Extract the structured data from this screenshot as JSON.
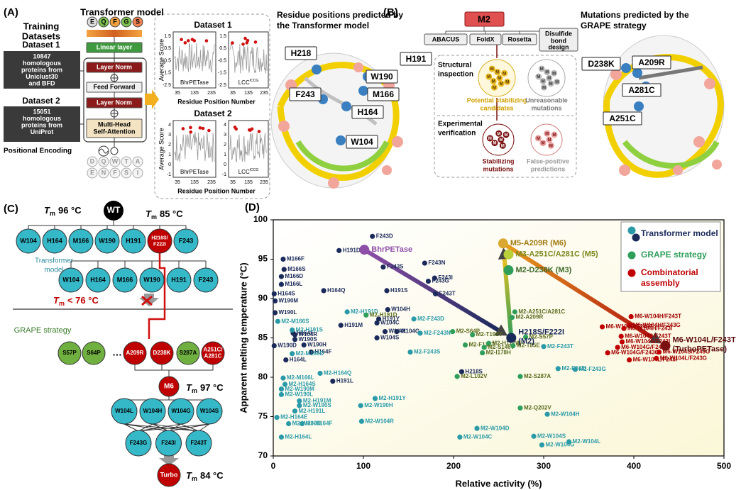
{
  "panels": {
    "A": {
      "letter": "(A)",
      "title": "Transformer model",
      "training": [
        "Training",
        "Datasets"
      ],
      "datasets": [
        {
          "name": "Dataset 1",
          "desc": [
            "10847",
            "homologous",
            "proteins from",
            "Uniclust30",
            "and BFD"
          ]
        },
        {
          "name": "Dataset 2",
          "desc": [
            "15051",
            "homologous",
            "proteins from",
            "UniProt"
          ]
        }
      ],
      "output_tokens": [
        "E",
        "Q",
        "F",
        "G",
        "S"
      ],
      "layers": [
        [
          "Linear layer"
        ],
        [
          "Layer Norm"
        ],
        [
          "Feed Forward"
        ],
        [
          "Layer Norm"
        ],
        [
          "Multi-Head",
          "Self-Attention"
        ]
      ],
      "positional_encoding": "Positional Encoding",
      "input_tokens": [
        [
          "D",
          "Q",
          "W",
          "T",
          "A"
        ],
        [
          "E",
          "N",
          "F",
          "S",
          "I"
        ]
      ],
      "score_plots": {
        "ylabel": "Average Score",
        "xlabel": "Residue Position Number",
        "proteins": [
          "BhrPETase",
          "LCC"
        ],
        "sup": "ICCG",
        "xticks": [
          "35",
          "135",
          "235"
        ],
        "datasets": [
          {
            "title": "Dataset 1",
            "yticks": [
              "1.5",
              "0.5",
              "-0.5",
              "-1.5",
              "-2.5"
            ]
          },
          {
            "title": "Dataset 2",
            "yticks": [
              "4",
              "3",
              "2",
              "1",
              "0",
              "-1"
            ]
          }
        ]
      },
      "structure_title": [
        "Residue positions predicted by",
        "the Transformer model"
      ],
      "residues": [
        "H218",
        "H191",
        "W190",
        "M166",
        "F243",
        "H164",
        "W104"
      ]
    },
    "B": {
      "letter": "(B)",
      "root": "M2",
      "tools": [
        "ABACUS",
        "FoldX",
        "Rosetta"
      ],
      "disulfide": [
        "Disulfide",
        "bond",
        "design"
      ],
      "token": "M",
      "step1": [
        "Structural",
        "inspection"
      ],
      "step1_pass": [
        "Potential stabilizing",
        "candidates"
      ],
      "step1_fail": [
        "Unreasonable",
        "mutations"
      ],
      "step2": [
        "Experimental",
        "verification"
      ],
      "step2_pass": [
        "Stabilizing",
        "mutations"
      ],
      "step2_fail": [
        "False-positive",
        "predictions"
      ],
      "structure_title": [
        "Mutations predicted by the",
        "GRAPE strategy"
      ],
      "mutations": [
        "D238K",
        "A209R",
        "A281C",
        "A251C"
      ]
    },
    "C": {
      "letter": "(C)",
      "tm_symbol": "T",
      "tm_sub": "m",
      "wt": "WT",
      "wt_tm": "96 °C",
      "m2_tm": "85 °C",
      "row1": [
        "W104",
        "H164",
        "M166",
        "W190",
        "H191",
        [
          "H218S/",
          "F222I"
        ],
        "F243"
      ],
      "transformer_label": [
        "Transformer",
        "model"
      ],
      "row2": [
        "W104",
        "H164",
        "M166",
        "W190",
        "H191",
        "F243"
      ],
      "cutoff": "< 76 °C",
      "grape_label": "GRAPE strategy",
      "row3": [
        "S57P",
        "S64P",
        "…",
        "A209R",
        "D238K",
        "S287A",
        [
          "A251C/",
          "A281C"
        ]
      ],
      "m6": "M6",
      "m6_tm": "97 °C",
      "row4": [
        "W104L",
        "W104H",
        "W104G",
        "W104S"
      ],
      "row5": [
        "F243G",
        "F243I",
        "F243T"
      ],
      "turbo": "Turbo",
      "turbo_tm": "84 °C"
    }
  },
  "chart_data": {
    "type": "scatter",
    "letter": "(D)",
    "xlabel": "Relative activity (%)",
    "ylabel": "Apparent melting temperature (°C)",
    "xlim": [
      0,
      500
    ],
    "ylim": [
      70,
      100
    ],
    "xticks": [
      0,
      100,
      200,
      300,
      400,
      500
    ],
    "yticks": [
      70,
      75,
      80,
      85,
      90,
      95,
      100
    ],
    "legend": [
      {
        "label": [
          "Transformer model"
        ],
        "colors": [
          "#2a9aa8",
          "#1a2a5a"
        ],
        "text_color": "#1a2a5a"
      },
      {
        "label": [
          "GRAPE strategy"
        ],
        "colors": [
          "#2e9e5a"
        ],
        "text_color": "#2e9e5a"
      },
      {
        "label": [
          "Combinatorial",
          "assembly"
        ],
        "colors": [
          "#c00000"
        ],
        "text_color": "#c00000"
      }
    ],
    "groups": [
      {
        "color": "#1a2a5a",
        "label_color": "#1a2a5a",
        "points": [
          {
            "label": "F243D",
            "x": 110,
            "y": 97.9
          },
          {
            "label": "H191D",
            "x": 73,
            "y": 96.1
          },
          {
            "label": "M166F",
            "x": 11,
            "y": 95
          },
          {
            "label": "F243N",
            "x": 168,
            "y": 94.5
          },
          {
            "label": "F243S",
            "x": 122,
            "y": 94
          },
          {
            "label": "M166S",
            "x": 12,
            "y": 93.7
          },
          {
            "label": "F243I",
            "x": 179,
            "y": 92.6
          },
          {
            "label": "M166D",
            "x": 9,
            "y": 92.8
          },
          {
            "label": "F243G",
            "x": 172,
            "y": 92.2
          },
          {
            "label": "M166L",
            "x": 9,
            "y": 91.8
          },
          {
            "label": "H191S",
            "x": 126,
            "y": 91
          },
          {
            "label": "H164Q",
            "x": 56,
            "y": 91
          },
          {
            "label": "H164S",
            "x": 1,
            "y": 90.6
          },
          {
            "label": "F243T",
            "x": 180,
            "y": 90.6
          },
          {
            "label": "W190M",
            "x": 2,
            "y": 89.7
          },
          {
            "label": "W104H",
            "x": 127,
            "y": 88.6
          },
          {
            "label": "W190L",
            "x": 2,
            "y": 88.2
          },
          {
            "label": "H191Y",
            "x": 117,
            "y": 87.4
          },
          {
            "label": "W104C",
            "x": 115,
            "y": 86.9
          },
          {
            "label": "H191M",
            "x": 75,
            "y": 86.6
          },
          {
            "label": "W104L",
            "x": 124,
            "y": 85.8
          },
          {
            "label": "W104G",
            "x": 137,
            "y": 85.8
          },
          {
            "label": "W104S",
            "x": 115,
            "y": 85
          },
          {
            "label": "W104R",
            "x": 24,
            "y": 85.4
          },
          {
            "label": "H164F",
            "x": 22,
            "y": 85.6
          },
          {
            "label": "W190S",
            "x": 24,
            "y": 84.8
          },
          {
            "label": "W190D",
            "x": 1,
            "y": 84
          },
          {
            "label": "W190H",
            "x": 34,
            "y": 84.1
          },
          {
            "label": "H164F",
            "x": 42,
            "y": 83.2
          },
          {
            "label": "H164L",
            "x": 14,
            "y": 82.2
          },
          {
            "label": "H218S",
            "x": 209,
            "y": 80.7
          },
          {
            "label": "H191L",
            "x": 66,
            "y": 79.5
          }
        ]
      },
      {
        "color": "#2a9aa8",
        "label_color": "#2a9aa8",
        "points": [
          {
            "label": "M2-H191D",
            "x": 82,
            "y": 88.3
          },
          {
            "label": "M2-M166S",
            "x": 5,
            "y": 87.1
          },
          {
            "label": "M2-H191S",
            "x": 21,
            "y": 86
          },
          {
            "label": "M2-F243D",
            "x": 156,
            "y": 87.4
          },
          {
            "label": "M2-F243N",
            "x": 163,
            "y": 85.6
          },
          {
            "label": "M2-F243S",
            "x": 152,
            "y": 83.2
          },
          {
            "label": "M2-M166D",
            "x": 21,
            "y": 83
          },
          {
            "label": "M2-F243T",
            "x": 300,
            "y": 83.9
          },
          {
            "label": "M2-F243I",
            "x": 316,
            "y": 81.1
          },
          {
            "label": "M2-F243G",
            "x": 335,
            "y": 81
          },
          {
            "label": "M2-H164Q",
            "x": 52,
            "y": 80.5
          },
          {
            "label": "M2-M166L",
            "x": 11,
            "y": 79.9
          },
          {
            "label": "M2-H164S",
            "x": 13,
            "y": 79.1
          },
          {
            "label": "M2-W190M",
            "x": 9,
            "y": 78.5
          },
          {
            "label": "M2-W190L",
            "x": 9,
            "y": 77.8
          },
          {
            "label": "M2-H191M",
            "x": 29,
            "y": 77
          },
          {
            "label": "M2-W190S",
            "x": 29,
            "y": 76.4
          },
          {
            "label": "M2-H191L",
            "x": 24,
            "y": 75.7
          },
          {
            "label": "M2-H164E",
            "x": 4,
            "y": 74.9
          },
          {
            "label": "M2-W190D",
            "x": 17,
            "y": 74.1
          },
          {
            "label": "M2-H164F",
            "x": 32,
            "y": 74.1
          },
          {
            "label": "M2-H164L",
            "x": 9,
            "y": 72.4
          },
          {
            "label": "M2-H191Y",
            "x": 113,
            "y": 77.3
          },
          {
            "label": "M2-W190H",
            "x": 97,
            "y": 76.4
          },
          {
            "label": "M2-W104R",
            "x": 98,
            "y": 74.4
          },
          {
            "label": "M2-W104H",
            "x": 304,
            "y": 75.3
          },
          {
            "label": "M2-W104D",
            "x": 226,
            "y": 73.5
          },
          {
            "label": "M2-W104C",
            "x": 207,
            "y": 72.4
          },
          {
            "label": "M2-W104S",
            "x": 289,
            "y": 72.5
          },
          {
            "label": "M2-W104G",
            "x": 298,
            "y": 71.4
          },
          {
            "label": "M2-W104L",
            "x": 328,
            "y": 71.8
          }
        ]
      },
      {
        "color": "#2e9e5a",
        "label_color": "#5a6b1e",
        "points": [
          {
            "label": "M2-H191D",
            "x": 103,
            "y": 87.9
          },
          {
            "label": "M2-S64P",
            "x": 199,
            "y": 85.8
          },
          {
            "label": "M2-T192Y",
            "x": 221,
            "y": 85.4
          },
          {
            "label": "M2-F127T",
            "x": 213,
            "y": 84.1
          },
          {
            "label": "M2-H112W",
            "x": 239,
            "y": 84.3
          },
          {
            "label": "M2-S146V",
            "x": 234,
            "y": 83.8
          },
          {
            "label": "M2-I178H",
            "x": 232,
            "y": 83.1
          },
          {
            "label": "M2-T85E",
            "x": 266,
            "y": 84
          },
          {
            "label": "M2-S57P",
            "x": 280,
            "y": 85.1
          },
          {
            "label": "M2-A251C/A281C",
            "x": 268,
            "y": 88.3
          },
          {
            "label": "M2-A209R",
            "x": 265,
            "y": 87.6
          },
          {
            "label": "M2-S287A",
            "x": 274,
            "y": 80.1
          },
          {
            "label": "M2-L102V",
            "x": 204,
            "y": 80.1
          },
          {
            "label": "M2-Q202V",
            "x": 274,
            "y": 76.1
          }
        ]
      },
      {
        "color": "#c00000",
        "label_color": "#a00000",
        "points": [
          {
            "label": "M6-W104H/F243T",
            "x": 397,
            "y": 87.7
          },
          {
            "label": "M6-W104H/F243G",
            "x": 395,
            "y": 86.6
          },
          {
            "label": "M6-W104G/F243T",
            "x": 365,
            "y": 86.4
          },
          {
            "label": "M6-W104H/F243I",
            "x": 389,
            "y": 86.2
          },
          {
            "label": "M6-W104S/F243T",
            "x": 386,
            "y": 85.2
          },
          {
            "label": "M6-W104S/F243I",
            "x": 387,
            "y": 84.5
          },
          {
            "label": "M6-W104G/F243I",
            "x": 382,
            "y": 83.8
          },
          {
            "label": "M6-W104G/F243G",
            "x": 371,
            "y": 83.1
          },
          {
            "label": "M6-W104L/F243I",
            "x": 395,
            "y": 82.2
          },
          {
            "label": "M6-W104S/F243G",
            "x": 428,
            "y": 83.2
          },
          {
            "label": "M6-W104L/F243G",
            "x": 425,
            "y": 82.4
          }
        ]
      }
    ],
    "highlights": [
      {
        "label": [
          "BhrPETase"
        ],
        "x": 101,
        "y": 96.2,
        "color": "#8e4fa8",
        "label_color": "#8e4fa8"
      },
      {
        "label": [
          "H218S/F222I",
          "(M2)"
        ],
        "x": 264,
        "y": 85,
        "color": "#1a2a5a",
        "label_color": "#1a2a5a"
      },
      {
        "label": [
          "M2-D238K (M3)"
        ],
        "x": 261,
        "y": 93.6,
        "color": "#2e9e5a",
        "label_color": "#3f6b2a"
      },
      {
        "label": [
          "M3-A251C/A281C (M5)"
        ],
        "x": 261,
        "y": 95.6,
        "color": "#b8cf3a",
        "label_color": "#7a8a1e"
      },
      {
        "label": [
          "M5-A209R (M6)"
        ],
        "x": 255,
        "y": 97,
        "color": "#d9a830",
        "label_color": "#a07a10"
      },
      {
        "label": [
          "M6-W104L/F243T",
          "(TurboPETase)"
        ],
        "x": 435,
        "y": 84,
        "color": "#7a1010",
        "label_color": "#5a0a0a"
      }
    ]
  }
}
